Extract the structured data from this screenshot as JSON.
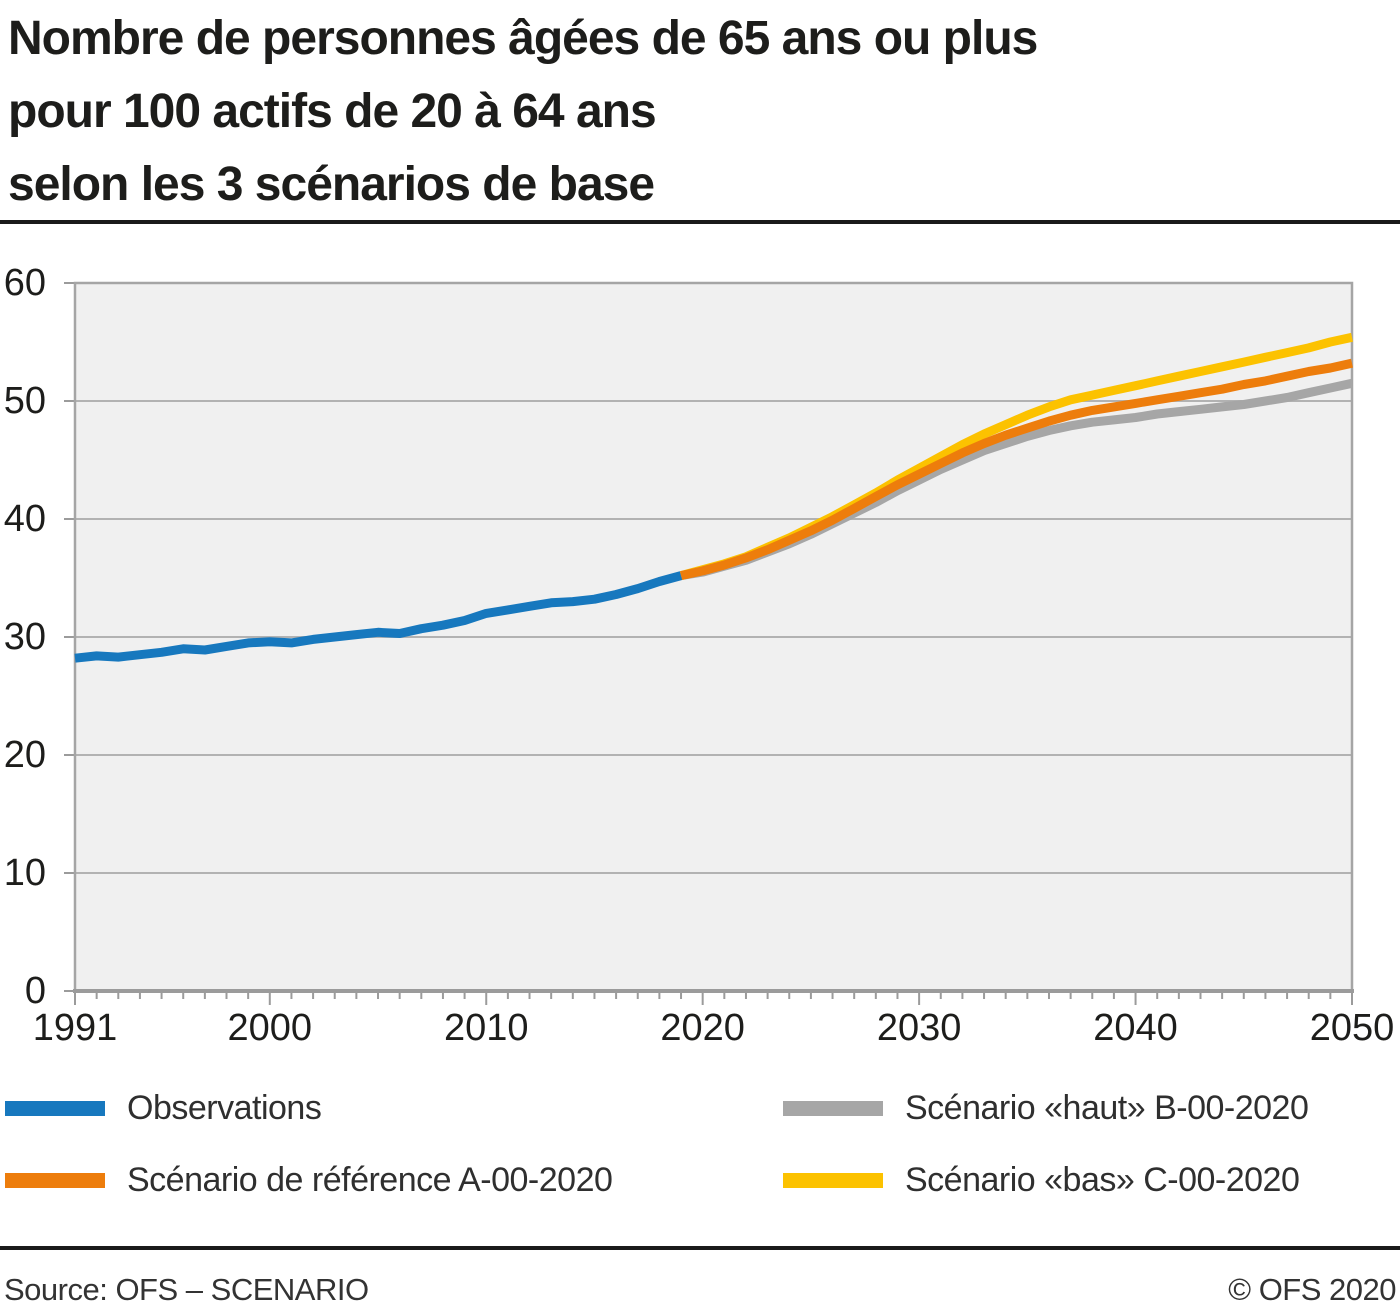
{
  "title": {
    "lines": [
      "Nombre de personnes âgées de 65 ans ou plus",
      "pour 100 actifs de 20 à 64 ans",
      "selon les 3 scénarios de base"
    ]
  },
  "legend": {
    "items": [
      {
        "label": "Observations",
        "color": "#1778be"
      },
      {
        "label": "Scénario «haut» B-00-2020",
        "color": "#a6a6a6"
      },
      {
        "label": "Scénario de référence A-00-2020",
        "color": "#ed7d0c"
      },
      {
        "label": "Scénario «bas» C-00-2020",
        "color": "#fcc200"
      }
    ]
  },
  "footer": {
    "source": "Source: OFS – SCENARIO",
    "copyright": "© OFS 2020"
  },
  "colors": {
    "observations": "#1778be",
    "scenario_reference": "#ed7d0c",
    "scenario_high": "#a6a6a6",
    "scenario_low": "#fcc200",
    "plot_background": "#f0f0f0",
    "gridline": "#b2b2b2",
    "axis": "#9b9b9b",
    "plot_border": "#a5a5a5",
    "text": "#1d1d1b"
  },
  "chart_data": {
    "type": "line",
    "title": "Nombre de personnes âgées de 65 ans ou plus pour 100 actifs de 20 à 64 ans selon les 3 scénarios de base",
    "xlabel": "",
    "ylabel": "",
    "x_axis": {
      "min": 1991,
      "max": 2050,
      "ticks": [
        1991,
        2000,
        2010,
        2020,
        2030,
        2040,
        2050
      ],
      "minor_tick_interval": 1
    },
    "y_axis": {
      "min": 0,
      "max": 60,
      "ticks": [
        0,
        10,
        20,
        30,
        40,
        50,
        60
      ]
    },
    "grid": "horizontal-only",
    "legend_position": "bottom",
    "series": [
      {
        "name": "Scénario «haut» B-00-2020",
        "color": "#a6a6a6",
        "x_start": 2019,
        "values": [
          35.2,
          35.5,
          36.0,
          36.5,
          37.2,
          37.9,
          38.7,
          39.6,
          40.5,
          41.4,
          42.4,
          43.3,
          44.2,
          45.0,
          45.8,
          46.4,
          47.0,
          47.5,
          47.9,
          48.2,
          48.4,
          48.6,
          48.9,
          49.1,
          49.3,
          49.5,
          49.7,
          50.0,
          50.3,
          50.7,
          51.1,
          51.5
        ]
      },
      {
        "name": "Scénario «bas» C-00-2020",
        "color": "#fcc200",
        "x_start": 2019,
        "values": [
          35.2,
          35.7,
          36.2,
          36.8,
          37.6,
          38.4,
          39.3,
          40.2,
          41.2,
          42.2,
          43.3,
          44.3,
          45.3,
          46.3,
          47.2,
          48.0,
          48.8,
          49.5,
          50.1,
          50.5,
          50.9,
          51.3,
          51.7,
          52.1,
          52.5,
          52.9,
          53.3,
          53.7,
          54.1,
          54.5,
          55.0,
          55.4
        ]
      },
      {
        "name": "Scénario de référence A-00-2020",
        "color": "#ed7d0c",
        "x_start": 2019,
        "values": [
          35.2,
          35.6,
          36.1,
          36.7,
          37.4,
          38.2,
          39.0,
          39.9,
          40.9,
          41.9,
          42.9,
          43.8,
          44.7,
          45.6,
          46.4,
          47.1,
          47.7,
          48.3,
          48.8,
          49.2,
          49.5,
          49.8,
          50.1,
          50.4,
          50.7,
          51.0,
          51.4,
          51.7,
          52.1,
          52.5,
          52.8,
          53.2
        ]
      },
      {
        "name": "Observations",
        "color": "#1778be",
        "x_start": 1991,
        "values": [
          28.2,
          28.4,
          28.3,
          28.5,
          28.7,
          29.0,
          28.9,
          29.2,
          29.5,
          29.6,
          29.5,
          29.8,
          30.0,
          30.2,
          30.4,
          30.3,
          30.7,
          31.0,
          31.4,
          32.0,
          32.3,
          32.6,
          32.9,
          33.0,
          33.2,
          33.6,
          34.1,
          34.7,
          35.2
        ]
      }
    ]
  }
}
